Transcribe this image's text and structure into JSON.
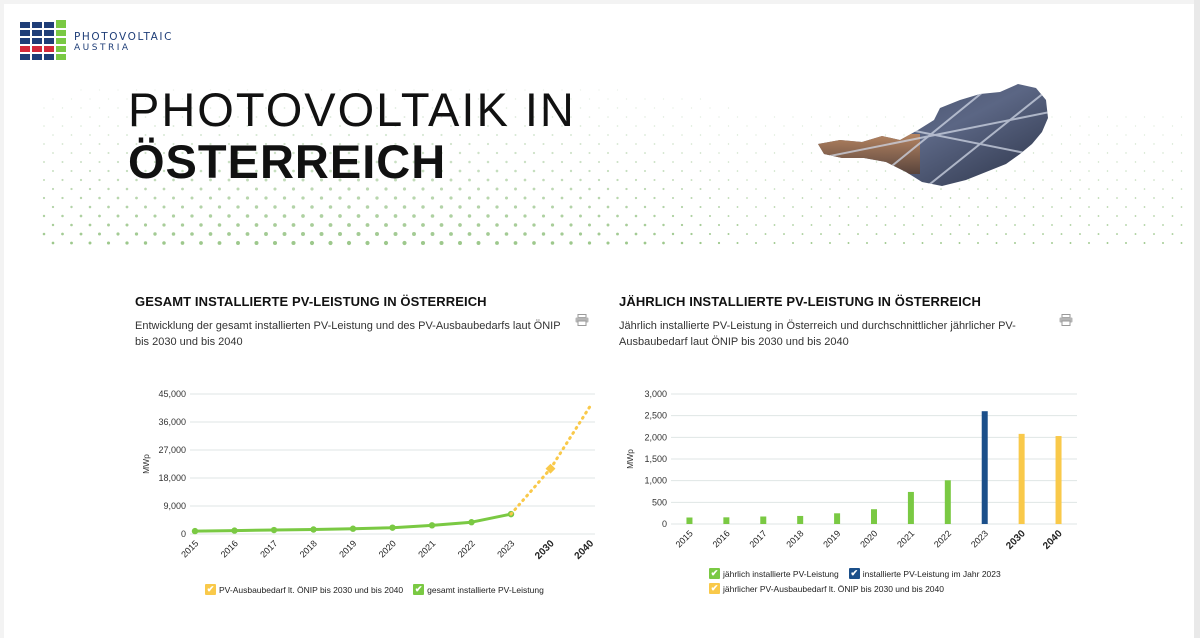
{
  "logo": {
    "line1": "PHOTOVOLTAIC",
    "line2": "AUSTRIA"
  },
  "hero": {
    "title_light": "PHOTOVOLTAIK IN",
    "title_bold": "ÖSTERREICH"
  },
  "colors": {
    "green": "#7ac943",
    "yellow": "#f9c94a",
    "navy": "#1b4f8a",
    "grid": "#dfe6e4"
  },
  "left_panel": {
    "heading": "GESAMT INSTALLIERTE PV-LEISTUNG IN ÖSTERREICH",
    "description": "Entwicklung der gesamt installierten PV-Leistung und des PV-Ausbaubedarfs laut ÖNIP bis 2030 und bis 2040",
    "print_icon": "printer-icon",
    "legend": [
      {
        "label": "PV-Ausbaubedarf lt. ÖNIP bis 2030 und bis 2040",
        "color": "#f9c94a"
      },
      {
        "label": "gesamt installierte PV-Leistung",
        "color": "#7ac943"
      }
    ]
  },
  "right_panel": {
    "heading": "JÄHRLICH INSTALLIERTE PV-LEISTUNG IN ÖSTERREICH",
    "description": "Jährlich installierte PV-Leistung in Österreich und durchschnittlicher jährlicher PV-Ausbaubedarf laut ÖNIP bis 2030 und bis 2040",
    "print_icon": "printer-icon",
    "legend": [
      {
        "label": "jährlich installierte PV-Leistung",
        "color": "#7ac943"
      },
      {
        "label": "installierte PV-Leistung im Jahr 2023",
        "color": "#1b4f8a"
      },
      {
        "label": "jährlicher PV-Ausbaubedarf lt. ÖNIP bis 2030 und bis 2040",
        "color": "#f9c94a"
      }
    ]
  },
  "chart_data": [
    {
      "type": "line",
      "title": "GESAMT INSTALLIERTE PV-LEISTUNG IN ÖSTERREICH",
      "ylabel": "MWp",
      "xlabel": "",
      "ylim": [
        0,
        45000
      ],
      "yticks": [
        0,
        9000,
        18000,
        27000,
        36000,
        45000
      ],
      "ytick_labels": [
        "0",
        "9,000",
        "18,000",
        "27,000",
        "36,000",
        "45,000"
      ],
      "categories": [
        "2015",
        "2016",
        "2017",
        "2018",
        "2019",
        "2020",
        "2021",
        "2022",
        "2023",
        "2030",
        "2040"
      ],
      "bold_categories": [
        "2030",
        "2040"
      ],
      "grid": true,
      "legend_position": "bottom",
      "series": [
        {
          "name": "gesamt installierte PV-Leistung",
          "color": "#7ac943",
          "style": "solid",
          "values": [
            940,
            1100,
            1270,
            1450,
            1700,
            2040,
            2780,
            3790,
            6390,
            null,
            null
          ]
        },
        {
          "name": "PV-Ausbaubedarf lt. ÖNIP bis 2030 und bis 2040",
          "color": "#f9c94a",
          "style": "dotted",
          "values": [
            null,
            null,
            null,
            null,
            null,
            null,
            null,
            null,
            6390,
            21000,
            41000
          ]
        }
      ]
    },
    {
      "type": "bar",
      "title": "JÄHRLICH INSTALLIERTE PV-LEISTUNG IN ÖSTERREICH",
      "ylabel": "MWp",
      "xlabel": "",
      "ylim": [
        0,
        3000
      ],
      "yticks": [
        0,
        500,
        1000,
        1500,
        2000,
        2500,
        3000
      ],
      "ytick_labels": [
        "0",
        "500",
        "1,000",
        "1,500",
        "2,000",
        "2,500",
        "3,000"
      ],
      "categories": [
        "2015",
        "2016",
        "2017",
        "2018",
        "2019",
        "2020",
        "2021",
        "2022",
        "2023",
        "2030",
        "2040"
      ],
      "bold_categories": [
        "2030",
        "2040"
      ],
      "grid": true,
      "legend_position": "bottom",
      "values": [
        150,
        154,
        173,
        186,
        247,
        341,
        740,
        1009,
        2603,
        2080,
        2030
      ],
      "bar_colors": [
        "#7ac943",
        "#7ac943",
        "#7ac943",
        "#7ac943",
        "#7ac943",
        "#7ac943",
        "#7ac943",
        "#7ac943",
        "#1b4f8a",
        "#f9c94a",
        "#f9c94a"
      ]
    }
  ]
}
